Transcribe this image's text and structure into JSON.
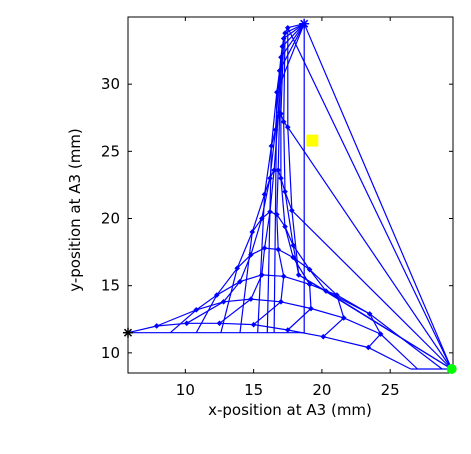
{
  "chart_data": {
    "type": "line",
    "title": "",
    "xlabel": "x-position at A3 (mm)",
    "ylabel": "y-position at A3 (mm)",
    "xlim": [
      5.8,
      29.6
    ],
    "ylim": [
      8.5,
      35.0
    ],
    "xticks": [
      "10",
      "15",
      "20",
      "25"
    ],
    "yticks": [
      "10",
      "15",
      "20",
      "25",
      "30"
    ],
    "line_color": "#0000ff",
    "corners": {
      "black_star": [
        5.8,
        11.5
      ],
      "blue_star_top": [
        18.7,
        34.5
      ],
      "green_dot": [
        29.5,
        8.8
      ]
    },
    "highlight": {
      "color": "#ffff00",
      "x": 19.3,
      "y": 25.8
    },
    "grid": {
      "rows": 9,
      "cols": 9,
      "xs": [
        [
          5.8,
          7.9,
          10.1,
          12.5,
          15.0,
          17.5,
          20.1,
          23.4,
          26.5
        ],
        [
          8.9,
          10.8,
          12.8,
          14.8,
          17.0,
          19.2,
          21.6,
          24.3,
          27.0
        ],
        [
          10.8,
          12.3,
          14.0,
          15.6,
          17.2,
          19.1,
          21.1,
          23.5,
          28.8
        ],
        [
          12.6,
          13.8,
          14.8,
          15.8,
          16.8,
          17.9,
          19.1,
          20.3,
          29.5
        ],
        [
          14.0,
          14.9,
          15.6,
          16.2,
          16.7,
          17.3,
          17.9,
          18.3,
          29.5
        ],
        [
          15.3,
          15.8,
          16.2,
          16.5,
          16.8,
          17.0,
          17.3,
          17.8,
          29.5
        ],
        [
          16.0,
          16.3,
          16.6,
          16.8,
          16.9,
          17.0,
          17.2,
          17.5,
          29.5
        ],
        [
          16.5,
          16.7,
          16.9,
          17.0,
          17.1,
          17.2,
          17.3,
          17.5,
          29.5
        ],
        [
          18.7,
          18.7,
          18.7,
          18.7,
          18.7,
          18.7,
          18.7,
          18.7,
          29.5
        ]
      ],
      "ys": [
        [
          11.5,
          12.0,
          12.2,
          12.2,
          12.1,
          11.7,
          11.2,
          10.4,
          8.8
        ],
        [
          11.5,
          13.2,
          13.8,
          14.0,
          13.8,
          13.3,
          12.6,
          11.4,
          8.8
        ],
        [
          11.5,
          14.3,
          15.3,
          15.8,
          15.7,
          15.1,
          14.3,
          12.9,
          8.8
        ],
        [
          11.5,
          16.3,
          17.3,
          17.8,
          17.7,
          17.1,
          16.2,
          14.6,
          8.8
        ],
        [
          11.5,
          19.0,
          20.0,
          20.5,
          20.3,
          19.4,
          18.0,
          15.8,
          8.8
        ],
        [
          11.5,
          21.8,
          23.0,
          23.6,
          23.6,
          23.0,
          22.0,
          20.6,
          8.8
        ],
        [
          11.5,
          25.4,
          26.6,
          27.6,
          27.9,
          27.8,
          27.2,
          26.8,
          8.8
        ],
        [
          11.5,
          29.4,
          31.0,
          32.0,
          32.8,
          33.4,
          33.8,
          34.2,
          8.8
        ],
        [
          11.5,
          34.5,
          34.5,
          34.5,
          34.5,
          34.5,
          34.5,
          34.5,
          8.8
        ]
      ]
    }
  }
}
